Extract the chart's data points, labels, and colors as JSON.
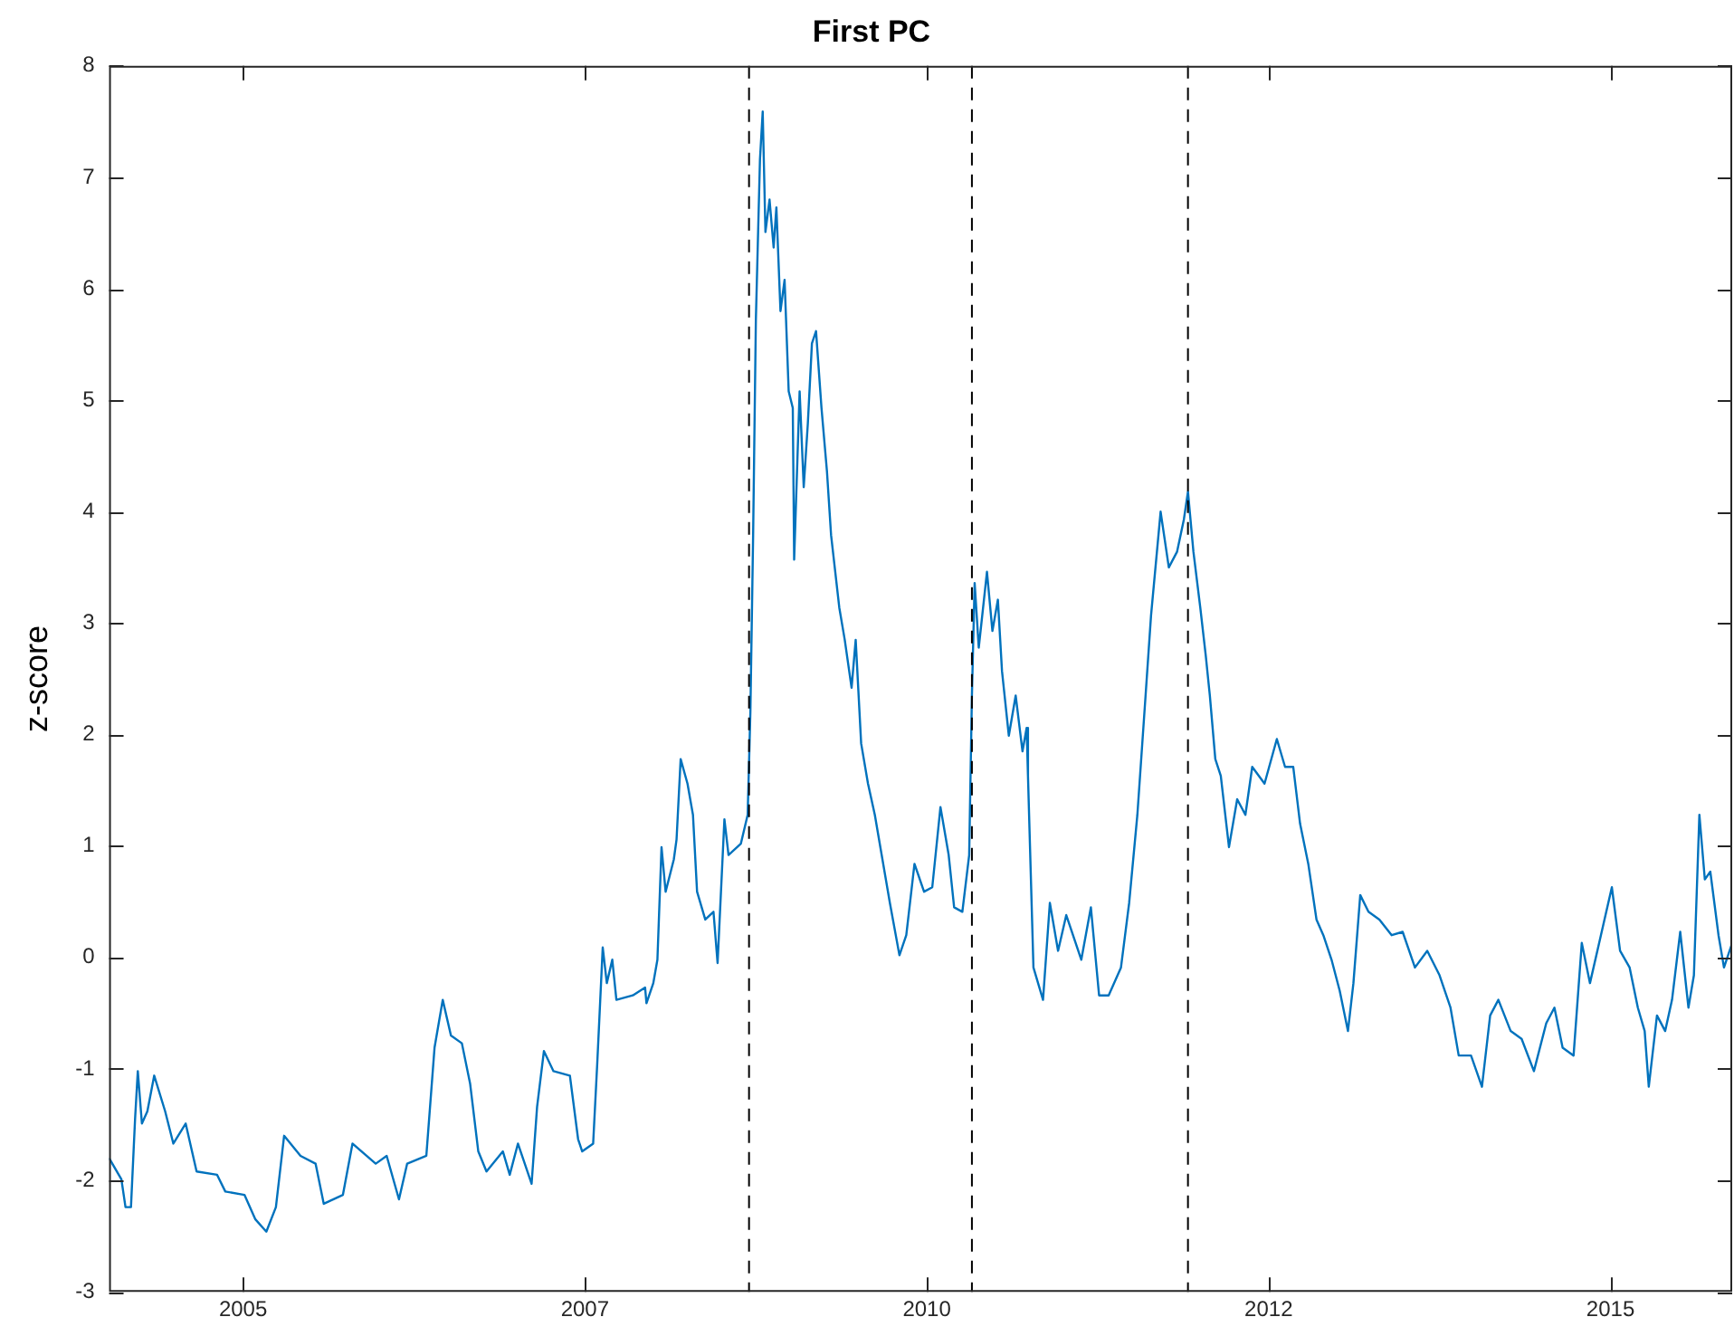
{
  "chart_data": {
    "type": "line",
    "title": "First PC",
    "ylabel": "z-score",
    "color": "#0072bd",
    "line_style": "solid",
    "marker": "none",
    "grid": false,
    "legend": false,
    "xlim": [
      2003.92,
      2015.79
    ],
    "xticks": [
      {
        "value": 2004.9,
        "label": "2005"
      },
      {
        "value": 2007.4,
        "label": "2007"
      },
      {
        "value": 2009.9,
        "label": "2010"
      },
      {
        "value": 2012.4,
        "label": "2012"
      },
      {
        "value": 2014.9,
        "label": "2015"
      }
    ],
    "ylim": [
      -3,
      8
    ],
    "yticks": [
      -3,
      -2,
      -1,
      0,
      1,
      2,
      3,
      4,
      5,
      6,
      7,
      8
    ],
    "ref_lines": [
      {
        "axis": "x",
        "value": 2008.6,
        "color": "#000000",
        "line_style": "dashed"
      },
      {
        "axis": "x",
        "value": 2010.23,
        "color": "#000000",
        "line_style": "dashed"
      },
      {
        "axis": "x",
        "value": 2011.81,
        "color": "#000000",
        "line_style": "dashed"
      }
    ],
    "x": [
      2003.92,
      2004.01,
      2004.04,
      2004.08,
      2004.11,
      2004.13,
      2004.16,
      2004.2,
      2004.25,
      2004.33,
      2004.39,
      2004.48,
      2004.56,
      2004.71,
      2004.77,
      2004.91,
      2004.99,
      2005.07,
      2005.14,
      2005.2,
      2005.32,
      2005.43,
      2005.49,
      2005.63,
      2005.7,
      2005.87,
      2005.95,
      2006.04,
      2006.1,
      2006.24,
      2006.3,
      2006.36,
      2006.42,
      2006.5,
      2006.56,
      2006.62,
      2006.68,
      2006.8,
      2006.85,
      2006.91,
      2007.01,
      2007.05,
      2007.1,
      2007.17,
      2007.29,
      2007.35,
      2007.38,
      2007.46,
      2007.49,
      2007.53,
      2007.56,
      2007.6,
      2007.63,
      2007.75,
      2007.84,
      2007.85,
      2007.9,
      2007.93,
      2007.96,
      2007.99,
      2008.05,
      2008.07,
      2008.1,
      2008.15,
      2008.19,
      2008.22,
      2008.28,
      2008.34,
      2008.37,
      2008.42,
      2008.45,
      2008.54,
      2008.59,
      2008.61,
      2008.63,
      2008.65,
      2008.68,
      2008.7,
      2008.72,
      2008.75,
      2008.78,
      2008.8,
      2008.83,
      2008.86,
      2008.89,
      2008.92,
      2008.93,
      2008.97,
      2009.0,
      2009.03,
      2009.06,
      2009.09,
      2009.13,
      2009.17,
      2009.2,
      2009.26,
      2009.3,
      2009.35,
      2009.38,
      2009.42,
      2009.47,
      2009.52,
      2009.57,
      2009.63,
      2009.7,
      2009.75,
      2009.81,
      2009.88,
      2009.94,
      2010.0,
      2010.06,
      2010.1,
      2010.16,
      2010.21,
      2010.23,
      2010.25,
      2010.28,
      2010.34,
      2010.38,
      2010.42,
      2010.45,
      2010.5,
      2010.55,
      2010.6,
      2010.63,
      2010.64,
      2010.68,
      2010.75,
      2010.8,
      2010.86,
      2010.92,
      2011.03,
      2011.1,
      2011.16,
      2011.23,
      2011.32,
      2011.38,
      2011.44,
      2011.5,
      2011.54,
      2011.61,
      2011.67,
      2011.73,
      2011.78,
      2011.81,
      2011.85,
      2011.9,
      2011.94,
      2011.97,
      2012.01,
      2012.05,
      2012.11,
      2012.17,
      2012.23,
      2012.28,
      2012.37,
      2012.46,
      2012.52,
      2012.58,
      2012.63,
      2012.69,
      2012.75,
      2012.8,
      2012.86,
      2012.92,
      2012.98,
      2013.02,
      2013.07,
      2013.13,
      2013.21,
      2013.3,
      2013.38,
      2013.47,
      2013.56,
      2013.65,
      2013.73,
      2013.79,
      2013.88,
      2013.96,
      2014.02,
      2014.08,
      2014.17,
      2014.25,
      2014.34,
      2014.43,
      2014.49,
      2014.55,
      2014.63,
      2014.69,
      2014.75,
      2014.83,
      2014.91,
      2014.97,
      2015.04,
      2015.1,
      2015.15,
      2015.18,
      2015.24,
      2015.3,
      2015.35,
      2015.41,
      2015.47,
      2015.51,
      2015.55,
      2015.59,
      2015.63,
      2015.69,
      2015.73,
      2015.79
    ],
    "values": [
      -1.8,
      -1.99,
      -2.24,
      -2.24,
      -1.45,
      -1.02,
      -1.49,
      -1.38,
      -1.06,
      -1.38,
      -1.67,
      -1.49,
      -1.92,
      -1.95,
      -2.1,
      -2.13,
      -2.35,
      -2.46,
      -2.24,
      -1.6,
      -1.78,
      -1.85,
      -2.21,
      -2.13,
      -1.67,
      -1.85,
      -1.78,
      -2.17,
      -1.85,
      -1.78,
      -0.81,
      -0.38,
      -0.7,
      -0.77,
      -1.13,
      -1.74,
      -1.92,
      -1.74,
      -1.95,
      -1.67,
      -2.03,
      -1.34,
      -0.84,
      -1.02,
      -1.06,
      -1.63,
      -1.74,
      -1.67,
      -0.95,
      0.09,
      -0.23,
      -0.02,
      -0.38,
      -0.34,
      -0.27,
      -0.41,
      -0.23,
      -0.02,
      0.99,
      0.59,
      0.88,
      1.06,
      1.78,
      1.56,
      1.28,
      0.59,
      0.34,
      0.41,
      -0.05,
      1.24,
      0.92,
      1.02,
      1.28,
      2.21,
      3.79,
      5.72,
      7.16,
      7.59,
      6.51,
      6.8,
      6.37,
      6.73,
      5.8,
      6.08,
      5.08,
      4.93,
      3.57,
      5.08,
      4.22,
      4.79,
      5.51,
      5.62,
      4.93,
      4.36,
      3.79,
      3.14,
      2.85,
      2.42,
      2.85,
      1.92,
      1.56,
      1.28,
      0.92,
      0.49,
      0.02,
      0.2,
      0.84,
      0.59,
      0.63,
      1.35,
      0.92,
      0.45,
      0.41,
      0.92,
      2.35,
      3.36,
      2.78,
      3.46,
      2.93,
      3.21,
      2.57,
      1.99,
      2.35,
      1.85,
      2.06,
      1.63,
      -0.09,
      -0.38,
      0.49,
      0.06,
      0.38,
      -0.02,
      0.45,
      -0.34,
      -0.34,
      -0.09,
      0.49,
      1.28,
      2.35,
      3.07,
      4.0,
      3.5,
      3.64,
      3.93,
      4.18,
      3.64,
      3.14,
      2.71,
      2.35,
      1.78,
      1.63,
      0.99,
      1.42,
      1.28,
      1.71,
      1.56,
      1.96,
      1.71,
      1.71,
      1.2,
      0.84,
      0.34,
      0.2,
      -0.02,
      -0.3,
      -0.66,
      -0.23,
      0.56,
      0.41,
      0.34,
      0.2,
      0.23,
      -0.09,
      0.06,
      -0.16,
      -0.45,
      -0.88,
      -0.88,
      -1.16,
      -0.52,
      -0.38,
      -0.66,
      -0.73,
      -1.02,
      -0.59,
      -0.45,
      -0.81,
      -0.88,
      0.13,
      -0.23,
      0.2,
      0.63,
      0.06,
      -0.09,
      -0.45,
      -0.66,
      -1.16,
      -0.52,
      -0.66,
      -0.38,
      0.23,
      -0.45,
      -0.16,
      1.28,
      0.7,
      0.77,
      0.2,
      -0.09,
      0.13
    ]
  }
}
